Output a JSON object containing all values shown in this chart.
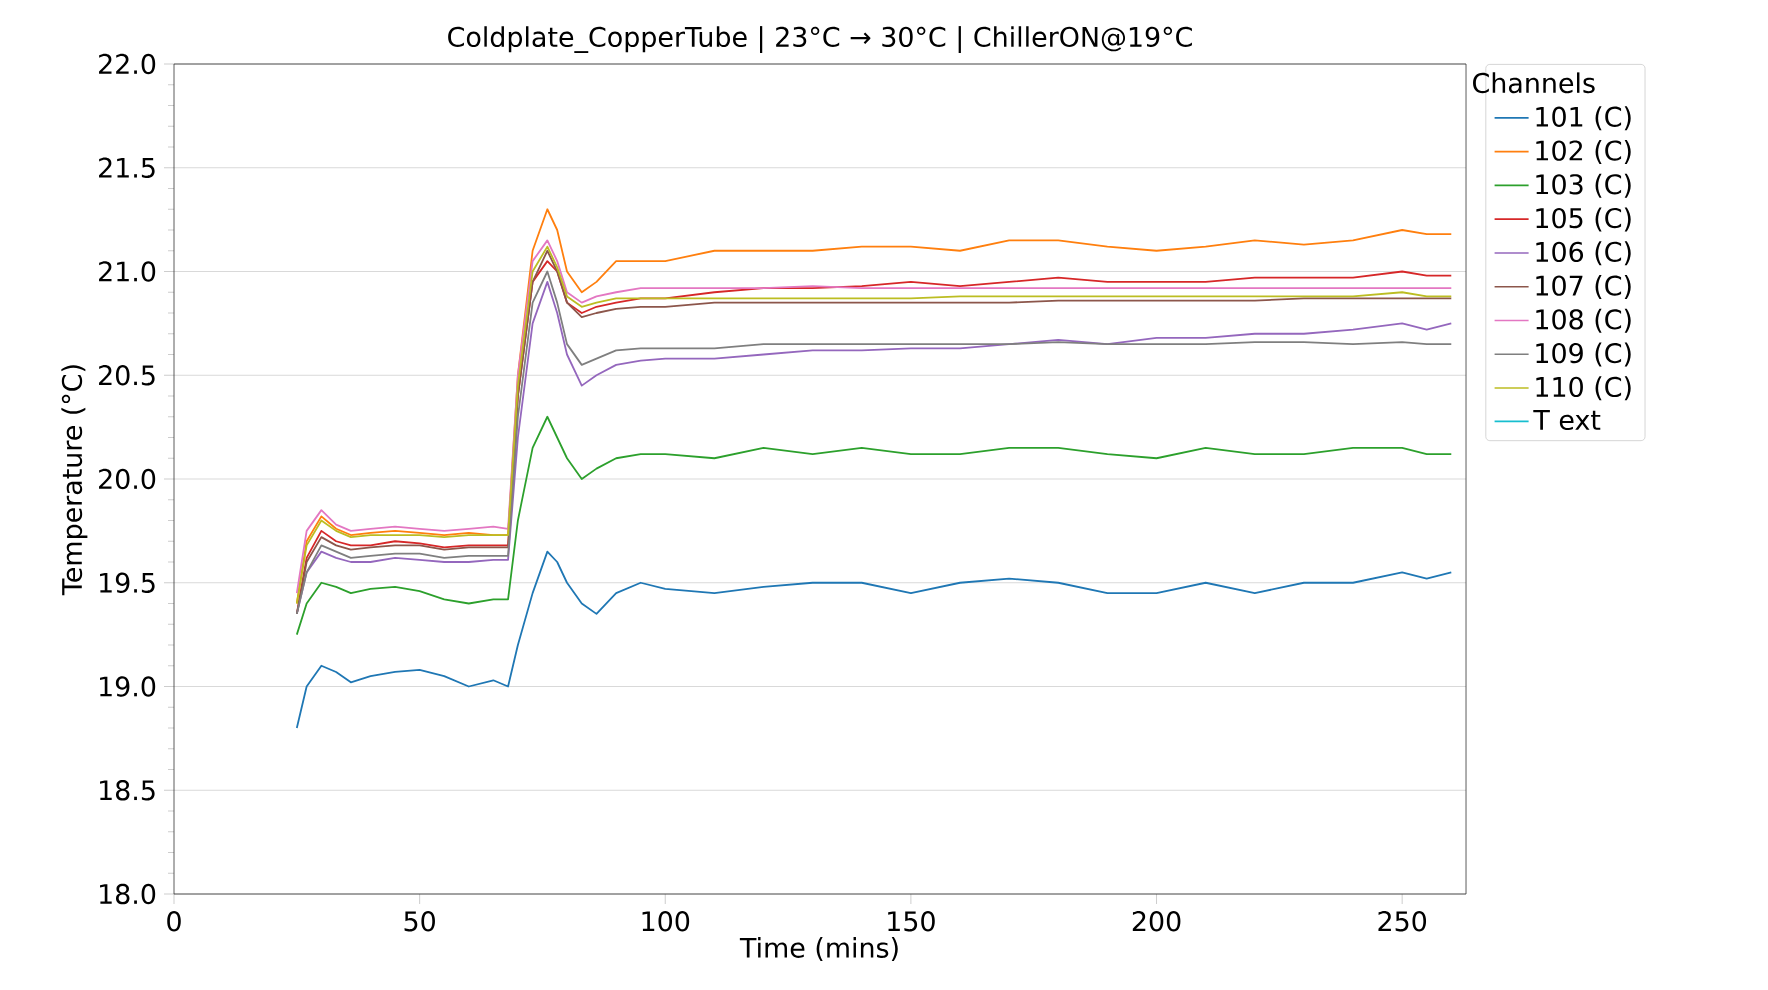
{
  "chart_data": {
    "type": "line",
    "title": "Coldplate_CopperTube | 23°C → 30°C | ChillerON@19°C",
    "xlabel": "Time (mins)",
    "ylabel": "Temperature (°C)",
    "legend_title": "Channels",
    "legend": "right",
    "grid": "y",
    "xlim": [
      0,
      263
    ],
    "xticks": [
      0,
      50,
      100,
      150,
      200,
      250
    ],
    "ylim": [
      18.0,
      22.0
    ],
    "yticks": [
      {
        "value": 18.0,
        "label": "18.0"
      },
      {
        "value": 18.5,
        "label": "18.5"
      },
      {
        "value": 19.0,
        "label": "19.0"
      },
      {
        "value": 19.5,
        "label": "19.5"
      },
      {
        "value": 20.0,
        "label": "20.0"
      },
      {
        "value": 20.5,
        "label": "20.5"
      },
      {
        "value": 21.0,
        "label": "21.0"
      },
      {
        "value": 21.5,
        "label": "21.5"
      },
      {
        "value": 22.0,
        "label": "22.0"
      }
    ],
    "x": [
      25,
      27,
      30,
      33,
      36,
      40,
      45,
      50,
      55,
      60,
      65,
      68,
      70,
      73,
      76,
      78,
      80,
      83,
      86,
      90,
      95,
      100,
      110,
      120,
      130,
      140,
      150,
      160,
      170,
      180,
      190,
      200,
      210,
      220,
      230,
      240,
      250,
      255,
      260
    ],
    "series": [
      {
        "name": "101 (C)",
        "color": "#1f77b4",
        "values": [
          18.8,
          19.0,
          19.1,
          19.07,
          19.02,
          19.05,
          19.07,
          19.08,
          19.05,
          19.0,
          19.03,
          19.0,
          19.2,
          19.45,
          19.65,
          19.6,
          19.5,
          19.4,
          19.35,
          19.45,
          19.5,
          19.47,
          19.45,
          19.48,
          19.5,
          19.5,
          19.45,
          19.5,
          19.52,
          19.5,
          19.45,
          19.45,
          19.5,
          19.45,
          19.5,
          19.5,
          19.55,
          19.52,
          19.55
        ]
      },
      {
        "name": "102 (C)",
        "color": "#ff7f0e",
        "values": [
          19.4,
          19.7,
          19.82,
          19.76,
          19.73,
          19.74,
          19.75,
          19.74,
          19.73,
          19.74,
          19.73,
          19.73,
          20.5,
          21.1,
          21.3,
          21.2,
          21.0,
          20.9,
          20.95,
          21.05,
          21.05,
          21.05,
          21.1,
          21.1,
          21.1,
          21.12,
          21.12,
          21.1,
          21.15,
          21.15,
          21.12,
          21.1,
          21.12,
          21.15,
          21.13,
          21.15,
          21.2,
          21.18,
          21.18
        ]
      },
      {
        "name": "103 (C)",
        "color": "#2ca02c",
        "values": [
          19.25,
          19.4,
          19.5,
          19.48,
          19.45,
          19.47,
          19.48,
          19.46,
          19.42,
          19.4,
          19.42,
          19.42,
          19.8,
          20.15,
          20.3,
          20.2,
          20.1,
          20.0,
          20.05,
          20.1,
          20.12,
          20.12,
          20.1,
          20.15,
          20.12,
          20.15,
          20.12,
          20.12,
          20.15,
          20.15,
          20.12,
          20.1,
          20.15,
          20.12,
          20.12,
          20.15,
          20.15,
          20.12,
          20.12
        ]
      },
      {
        "name": "105 (C)",
        "color": "#d62728",
        "values": [
          19.35,
          19.62,
          19.75,
          19.7,
          19.68,
          19.68,
          19.7,
          19.69,
          19.67,
          19.68,
          19.68,
          19.68,
          20.4,
          20.95,
          21.05,
          21.0,
          20.85,
          20.8,
          20.83,
          20.85,
          20.87,
          20.87,
          20.9,
          20.92,
          20.92,
          20.93,
          20.95,
          20.93,
          20.95,
          20.97,
          20.95,
          20.95,
          20.95,
          20.97,
          20.97,
          20.97,
          21.0,
          20.98,
          20.98
        ]
      },
      {
        "name": "106 (C)",
        "color": "#9467bd",
        "values": [
          19.35,
          19.55,
          19.65,
          19.62,
          19.6,
          19.6,
          19.62,
          19.61,
          19.6,
          19.6,
          19.61,
          19.61,
          20.2,
          20.75,
          20.95,
          20.8,
          20.6,
          20.45,
          20.5,
          20.55,
          20.57,
          20.58,
          20.58,
          20.6,
          20.62,
          20.62,
          20.63,
          20.63,
          20.65,
          20.67,
          20.65,
          20.68,
          20.68,
          20.7,
          20.7,
          20.72,
          20.75,
          20.72,
          20.75
        ]
      },
      {
        "name": "107 (C)",
        "color": "#8c564b",
        "values": [
          19.35,
          19.6,
          19.72,
          19.68,
          19.66,
          19.67,
          19.68,
          19.68,
          19.66,
          19.67,
          19.67,
          19.67,
          20.4,
          20.95,
          21.1,
          21.0,
          20.85,
          20.78,
          20.8,
          20.82,
          20.83,
          20.83,
          20.85,
          20.85,
          20.85,
          20.85,
          20.85,
          20.85,
          20.85,
          20.86,
          20.86,
          20.86,
          20.86,
          20.86,
          20.87,
          20.87,
          20.87,
          20.87,
          20.87
        ]
      },
      {
        "name": "108 (C)",
        "color": "#e377c2",
        "values": [
          19.45,
          19.75,
          19.85,
          19.78,
          19.75,
          19.76,
          19.77,
          19.76,
          19.75,
          19.76,
          19.77,
          19.76,
          20.5,
          21.05,
          21.15,
          21.05,
          20.9,
          20.85,
          20.88,
          20.9,
          20.92,
          20.92,
          20.92,
          20.92,
          20.93,
          20.92,
          20.92,
          20.92,
          20.92,
          20.92,
          20.92,
          20.92,
          20.92,
          20.92,
          20.92,
          20.92,
          20.92,
          20.92,
          20.92
        ]
      },
      {
        "name": "109 (C)",
        "color": "#7f7f7f",
        "values": [
          19.35,
          19.55,
          19.68,
          19.65,
          19.62,
          19.63,
          19.64,
          19.64,
          19.62,
          19.63,
          19.63,
          19.63,
          20.3,
          20.85,
          21.0,
          20.85,
          20.65,
          20.55,
          20.58,
          20.62,
          20.63,
          20.63,
          20.63,
          20.65,
          20.65,
          20.65,
          20.65,
          20.65,
          20.65,
          20.66,
          20.65,
          20.65,
          20.65,
          20.66,
          20.66,
          20.65,
          20.66,
          20.65,
          20.65
        ]
      },
      {
        "name": "110 (C)",
        "color": "#bcbd22",
        "values": [
          19.4,
          19.68,
          19.8,
          19.75,
          19.72,
          19.73,
          19.73,
          19.73,
          19.72,
          19.73,
          19.73,
          19.73,
          20.45,
          21.0,
          21.12,
          21.02,
          20.88,
          20.83,
          20.85,
          20.87,
          20.87,
          20.87,
          20.87,
          20.87,
          20.87,
          20.87,
          20.87,
          20.88,
          20.88,
          20.88,
          20.88,
          20.88,
          20.88,
          20.88,
          20.88,
          20.88,
          20.9,
          20.88,
          20.88
        ]
      },
      {
        "name": "T ext",
        "color": "#17becf",
        "values": [
          null,
          null,
          null,
          null,
          null,
          null,
          null,
          null,
          null,
          null,
          null,
          null,
          null,
          null,
          null,
          null,
          null,
          null,
          null,
          null,
          null,
          null,
          null,
          null,
          null,
          null,
          null,
          null,
          null,
          null,
          null,
          null,
          null,
          null,
          null,
          null,
          null,
          null,
          null
        ]
      }
    ]
  }
}
